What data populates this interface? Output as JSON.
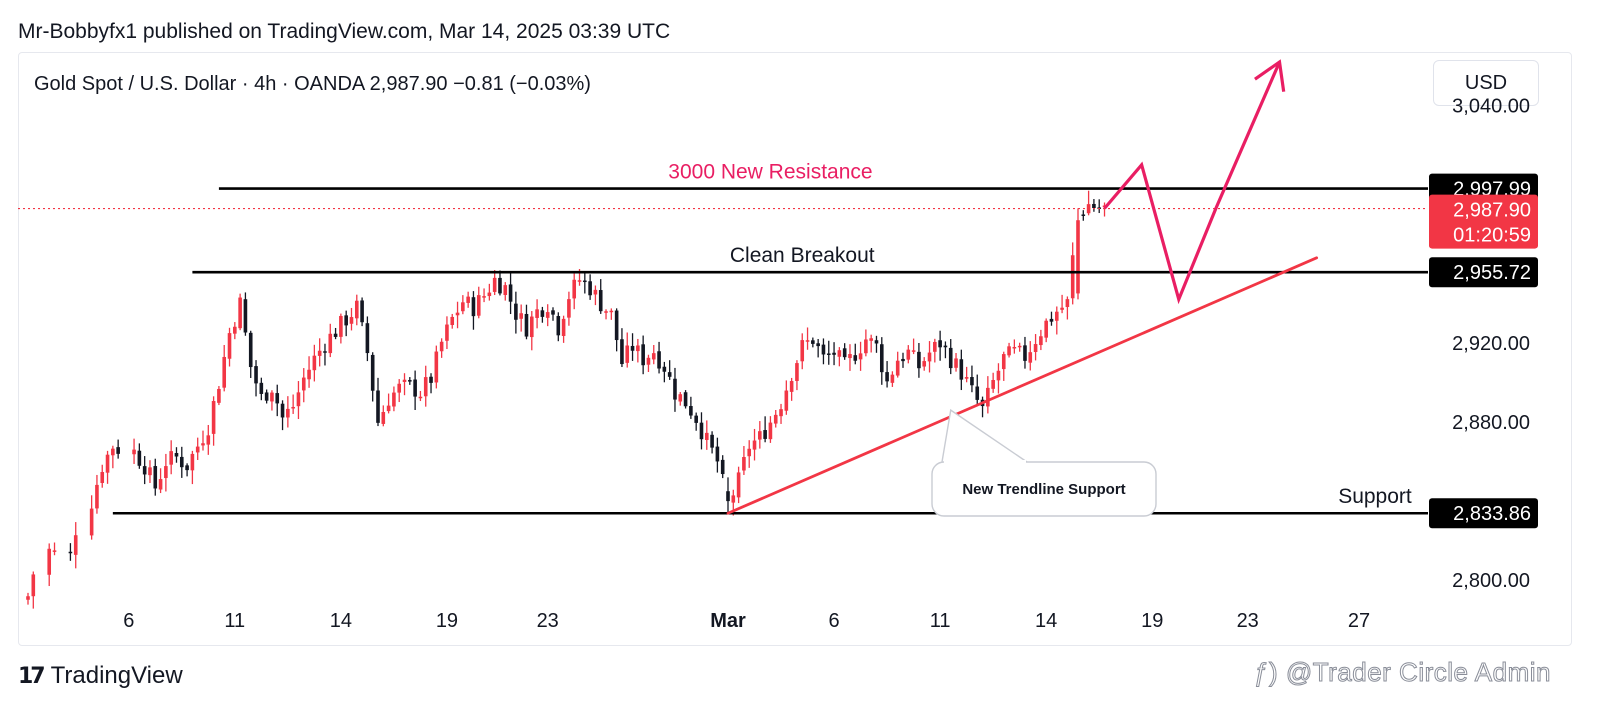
{
  "header": {
    "published_by": "Mr-Bobbyfx1 published on TradingView.com, Mar 14, 2025 03:39 UTC"
  },
  "symbol_bar": {
    "text": "Gold Spot / U.S. Dollar · 4h · OANDA  2,987.90  −0.81 (−0.03%)"
  },
  "currency_button": {
    "label": "USD"
  },
  "footer": {
    "brand": "TradingView",
    "watermark": "ƒ) @Trader Circle Admin"
  },
  "chart_data": {
    "type": "candlestick",
    "instrument": "Gold Spot / U.S. Dollar",
    "interval": "4h",
    "broker": "OANDA",
    "last_price": 2987.9,
    "change": -0.81,
    "change_pct": -0.03,
    "countdown": "01:20:59",
    "ylim": [
      2790,
      3062
    ],
    "xlim": [
      0,
      132
    ],
    "y_ticks": [
      {
        "value": 3040,
        "label": "3,040.00"
      },
      {
        "value": 2920,
        "label": "2,920.00"
      },
      {
        "value": 2880,
        "label": "2,880.00"
      },
      {
        "value": 2800,
        "label": "2,800.00"
      }
    ],
    "x_ticks": [
      {
        "x": 9.5,
        "label": "6",
        "bold": false
      },
      {
        "x": 19.5,
        "label": "11",
        "bold": false
      },
      {
        "x": 29.5,
        "label": "14",
        "bold": false
      },
      {
        "x": 39.5,
        "label": "19",
        "bold": false
      },
      {
        "x": 49,
        "label": "23",
        "bold": false
      },
      {
        "x": 66,
        "label": "Mar",
        "bold": true
      },
      {
        "x": 76,
        "label": "6",
        "bold": false
      },
      {
        "x": 86,
        "label": "11",
        "bold": false
      },
      {
        "x": 96,
        "label": "14",
        "bold": false
      },
      {
        "x": 106,
        "label": "19",
        "bold": false
      },
      {
        "x": 115,
        "label": "23",
        "bold": false
      },
      {
        "x": 125.5,
        "label": "27",
        "bold": false
      }
    ],
    "waypoints": [
      [
        0,
        2792
      ],
      [
        2,
        2815
      ],
      [
        4,
        2812
      ],
      [
        6,
        2840
      ],
      [
        7,
        2858
      ],
      [
        8,
        2868
      ],
      [
        10,
        2865
      ],
      [
        11,
        2858
      ],
      [
        12,
        2847
      ],
      [
        13,
        2860
      ],
      [
        14,
        2862
      ],
      [
        15,
        2858
      ],
      [
        16,
        2868
      ],
      [
        17,
        2878
      ],
      [
        18,
        2900
      ],
      [
        19,
        2925
      ],
      [
        20,
        2940
      ],
      [
        21,
        2908
      ],
      [
        22,
        2892
      ],
      [
        23,
        2898
      ],
      [
        24,
        2882
      ],
      [
        25,
        2888
      ],
      [
        26,
        2902
      ],
      [
        27,
        2912
      ],
      [
        28,
        2920
      ],
      [
        29,
        2926
      ],
      [
        30,
        2932
      ],
      [
        31,
        2938
      ],
      [
        32,
        2915
      ],
      [
        33,
        2880
      ],
      [
        34,
        2892
      ],
      [
        35,
        2897
      ],
      [
        36,
        2898
      ],
      [
        37,
        2895
      ],
      [
        38,
        2902
      ],
      [
        39,
        2920
      ],
      [
        40,
        2932
      ],
      [
        41,
        2941
      ],
      [
        42,
        2938
      ],
      [
        43,
        2944
      ],
      [
        44,
        2952
      ],
      [
        45,
        2948
      ],
      [
        46,
        2935
      ],
      [
        47,
        2928
      ],
      [
        48,
        2936
      ],
      [
        49,
        2940
      ],
      [
        50,
        2928
      ],
      [
        51,
        2944
      ],
      [
        52,
        2952
      ],
      [
        53,
        2948
      ],
      [
        54,
        2940
      ],
      [
        55,
        2934
      ],
      [
        56,
        2910
      ],
      [
        57,
        2918
      ],
      [
        58,
        2912
      ],
      [
        59,
        2916
      ],
      [
        60,
        2908
      ],
      [
        61,
        2895
      ],
      [
        62,
        2890
      ],
      [
        63,
        2882
      ],
      [
        64,
        2870
      ],
      [
        65,
        2860
      ],
      [
        66,
        2838
      ],
      [
        67,
        2850
      ],
      [
        68,
        2868
      ],
      [
        69,
        2872
      ],
      [
        70,
        2880
      ],
      [
        71,
        2890
      ],
      [
        72,
        2905
      ],
      [
        73,
        2918
      ],
      [
        74,
        2922
      ],
      [
        75,
        2912
      ],
      [
        76,
        2915
      ],
      [
        77,
        2908
      ],
      [
        78,
        2915
      ],
      [
        79,
        2922
      ],
      [
        80,
        2918
      ],
      [
        81,
        2900
      ],
      [
        82,
        2912
      ],
      [
        83,
        2915
      ],
      [
        84,
        2908
      ],
      [
        85,
        2915
      ],
      [
        86,
        2920
      ],
      [
        87,
        2912
      ],
      [
        88,
        2905
      ],
      [
        89,
        2895
      ],
      [
        90,
        2886
      ],
      [
        91,
        2900
      ],
      [
        92,
        2912
      ],
      [
        93,
        2915
      ],
      [
        94,
        2913
      ],
      [
        95,
        2922
      ],
      [
        96,
        2930
      ],
      [
        97,
        2936
      ],
      [
        98,
        2940
      ],
      [
        99,
        2985
      ],
      [
        100,
        2990
      ],
      [
        101,
        2988
      ]
    ],
    "key_candles": [
      {
        "x": 66,
        "open": 2845,
        "high": 2852,
        "low": 2833.86,
        "close": 2840
      },
      {
        "x": 99,
        "open": 2945,
        "high": 2988,
        "low": 2942,
        "close": 2982
      }
    ],
    "levels": [
      {
        "price": 2997.99,
        "label": "2,997.99",
        "x_start": 18,
        "tag_bg": "#000000",
        "annotation": "3000 New Resistance",
        "annotation_x": 70,
        "annotation_color": "#e91e63"
      },
      {
        "price": 2955.72,
        "label": "2,955.72",
        "x_start": 15.5,
        "tag_bg": "#000000",
        "annotation": "Clean Breakout",
        "annotation_x": 73,
        "annotation_color": "#131722"
      },
      {
        "price": 2833.86,
        "label": "2,833.86",
        "x_start": 8,
        "tag_bg": "#000000",
        "annotation": "Support",
        "annotation_x": 127,
        "annotation_color": "#131722"
      }
    ],
    "current_price_line": {
      "price": 2987.9,
      "label": "2,987.90",
      "countdown": "01:20:59",
      "color": "#f23645"
    },
    "trendline": {
      "from": [
        66,
        2833.86
      ],
      "to": [
        121.5,
        2963
      ],
      "color": "#f23645"
    },
    "callout": {
      "text": "New Trendline Support",
      "anchor": [
        87,
        2886
      ]
    },
    "projection": {
      "color": "#e91e63",
      "points": [
        [
          101.5,
          2988
        ],
        [
          105,
          3010
        ],
        [
          108.5,
          2942
        ],
        [
          112,
          2988
        ],
        [
          118,
          3062
        ]
      ]
    },
    "up_color": "#089981",
    "down_color": "#f23645",
    "chart_theme_up": "#f23645",
    "chart_theme_down": "#131722",
    "grid": false
  }
}
